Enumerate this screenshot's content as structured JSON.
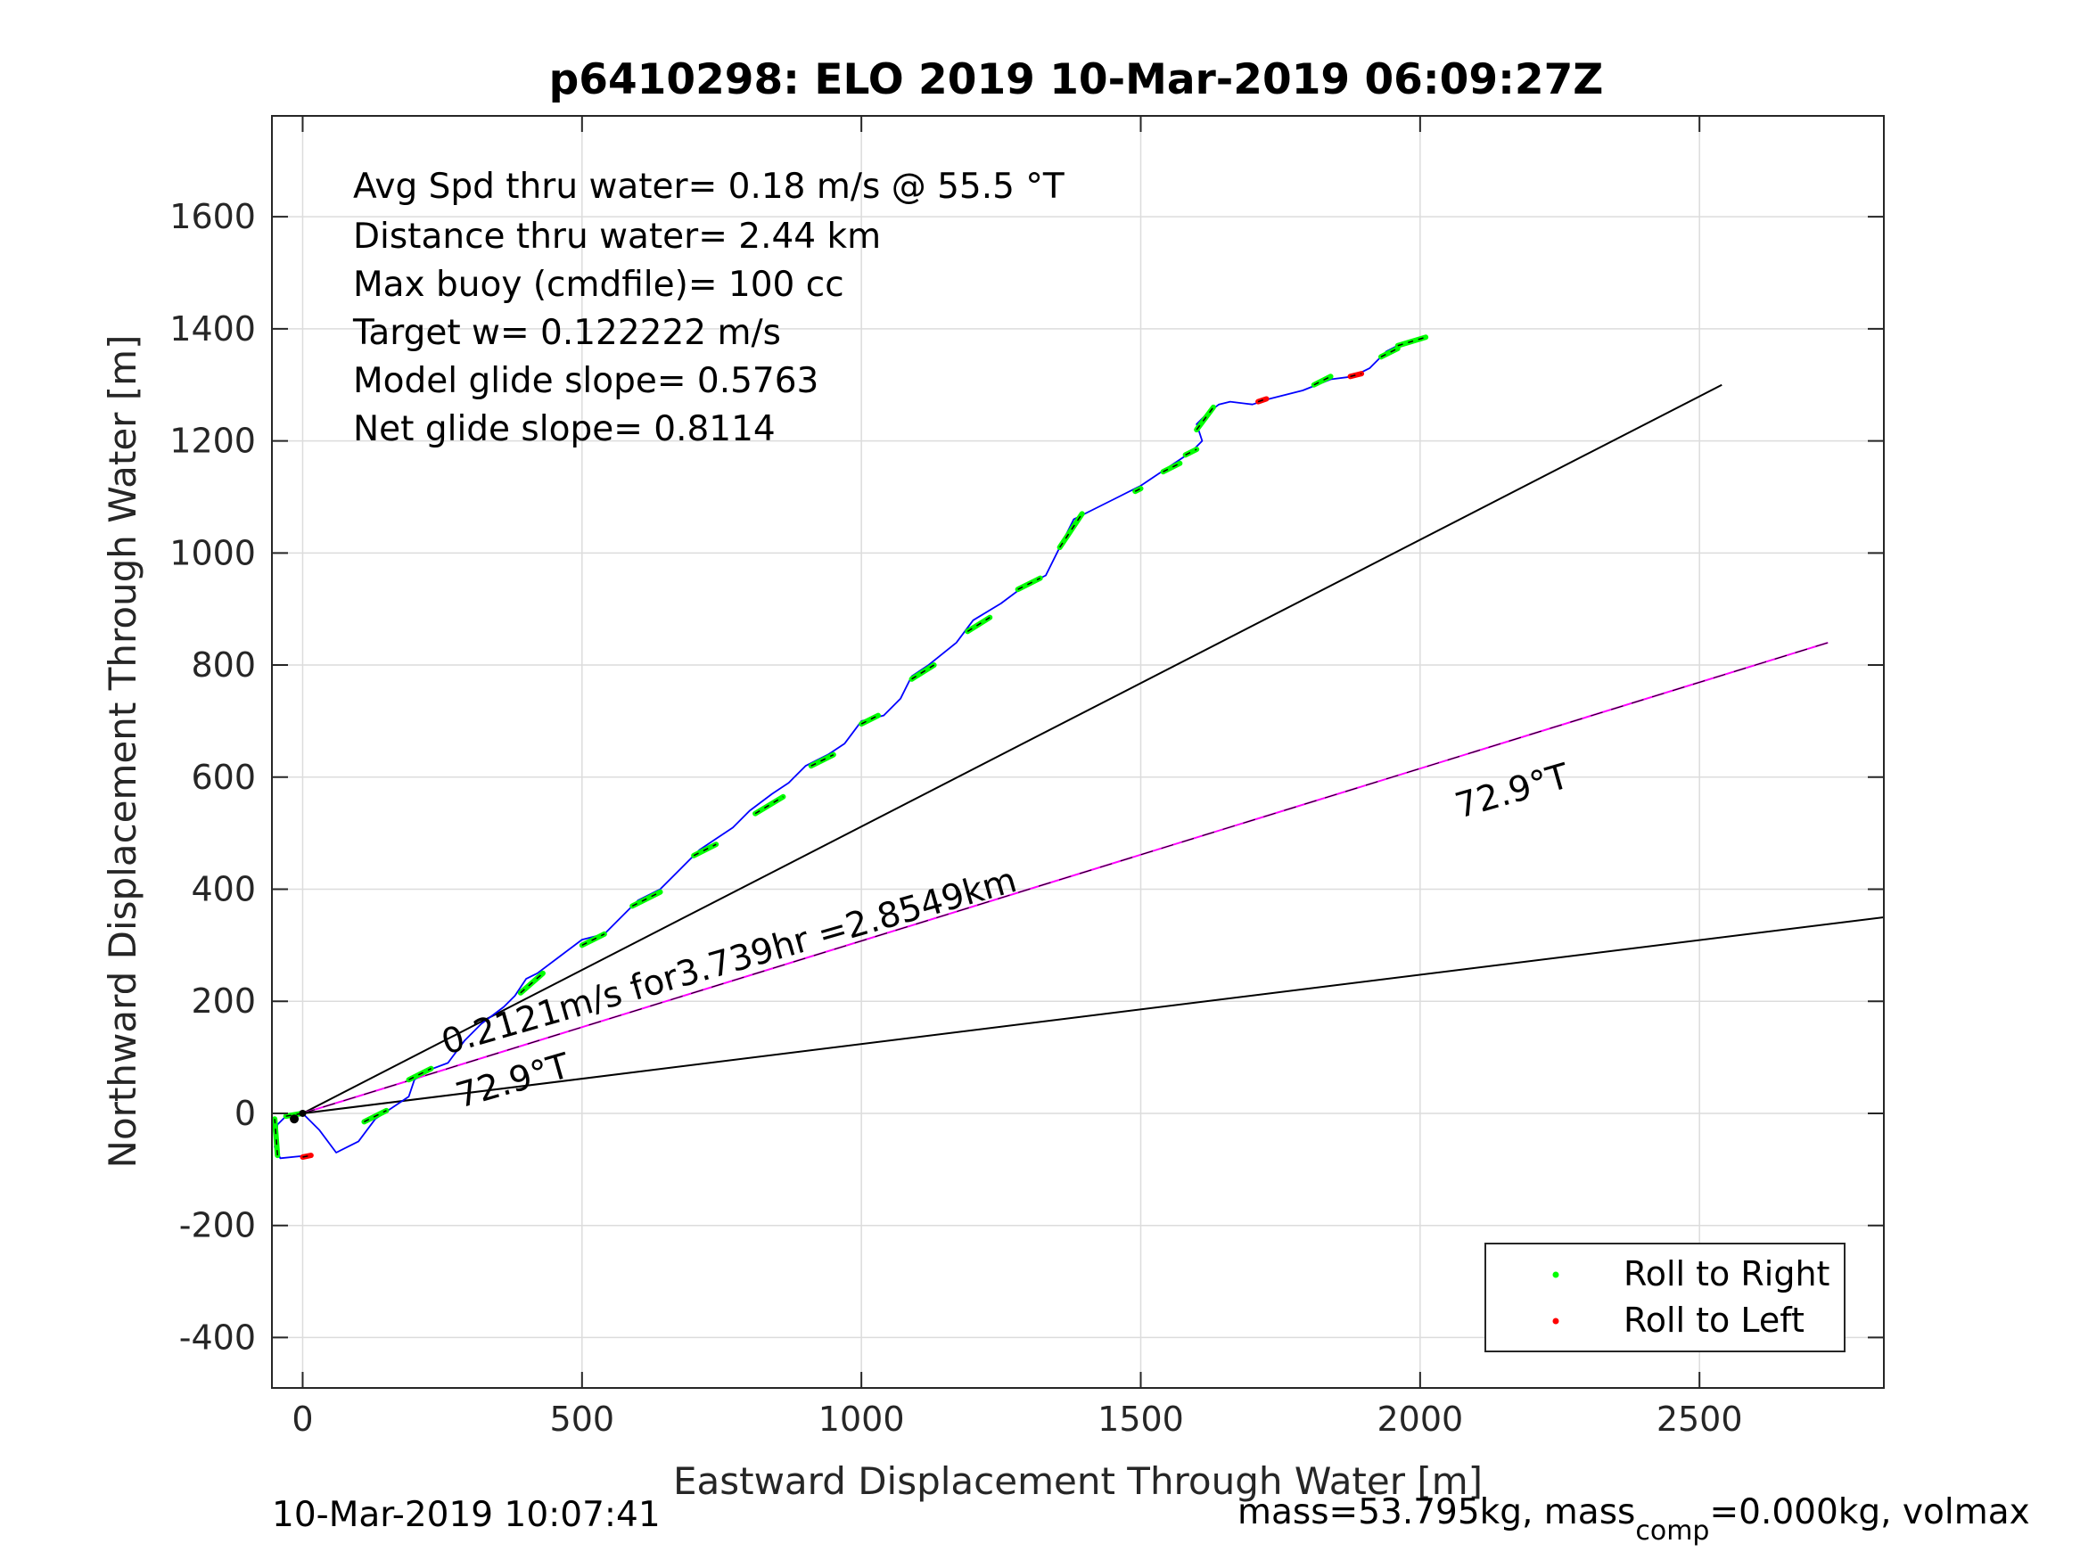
{
  "chart_data": {
    "type": "line",
    "title": "p6410298: ELO 2019 10-Mar-2019 06:09:27Z",
    "xlabel": "Eastward Displacement Through Water [m]",
    "ylabel": "Northward Displacement Through Water [m]",
    "xlim": [
      -55,
      2830
    ],
    "ylim": [
      -490,
      1780
    ],
    "xticks": [
      "0",
      "500",
      "1000",
      "1500",
      "2000",
      "2500"
    ],
    "yticks": [
      "-400",
      "-200",
      "0",
      "200",
      "400",
      "600",
      "800",
      "1000",
      "1200",
      "1400",
      "1600"
    ],
    "xtick_values": [
      0,
      500,
      1000,
      1500,
      2000,
      2500
    ],
    "ytick_values": [
      -400,
      -200,
      0,
      200,
      400,
      600,
      800,
      1000,
      1200,
      1400,
      1600
    ],
    "grid": true,
    "info_lines": [
      "Avg Spd thru water=  0.18 m/s @  55.5 °T",
      "Distance thru water=  2.44 km",
      "Max buoy (cmdfile)= 100 cc",
      "Target w= 0.122222 m/s",
      "Model glide slope= 0.5763",
      "Net glide slope= 0.8114"
    ],
    "annotations": {
      "current": "0.2121m/s for3.739hr =2.8549km",
      "heading_upper": "72.9°T",
      "heading_lower": "72.9°T"
    },
    "track": {
      "color": "#0000ff",
      "x": [
        10,
        -40,
        -50,
        -45,
        -30,
        0,
        30,
        60,
        100,
        130,
        160,
        190,
        200,
        220,
        260,
        290,
        320,
        360,
        380,
        400,
        420,
        460,
        500,
        540,
        570,
        600,
        640,
        680,
        710,
        740,
        770,
        800,
        840,
        870,
        900,
        940,
        970,
        1000,
        1040,
        1070,
        1090,
        1120,
        1170,
        1200,
        1250,
        1290,
        1330,
        1350,
        1380,
        1420,
        1460,
        1500,
        1530,
        1560,
        1590,
        1610,
        1600,
        1620,
        1640,
        1660,
        1700,
        1730,
        1790,
        1840,
        1880,
        1910,
        1940,
        1970,
        2010
      ],
      "y": [
        -75,
        -80,
        -60,
        -20,
        -5,
        0,
        -30,
        -70,
        -50,
        -10,
        10,
        30,
        60,
        75,
        90,
        130,
        160,
        190,
        210,
        240,
        250,
        280,
        310,
        320,
        350,
        380,
        400,
        440,
        470,
        490,
        510,
        540,
        570,
        590,
        620,
        640,
        660,
        700,
        710,
        740,
        780,
        800,
        840,
        880,
        910,
        940,
        960,
        1000,
        1060,
        1080,
        1100,
        1120,
        1140,
        1160,
        1180,
        1200,
        1230,
        1250,
        1265,
        1270,
        1265,
        1275,
        1290,
        1310,
        1315,
        1330,
        1360,
        1375,
        1385
      ]
    },
    "roll_right": {
      "name": "Roll to Right",
      "color": "#00ff00",
      "segments": [
        [
          -45,
          -75,
          -50,
          -10
        ],
        [
          -30,
          -5,
          0,
          0
        ],
        [
          190,
          60,
          230,
          80
        ],
        [
          110,
          -15,
          150,
          5
        ],
        [
          390,
          215,
          430,
          250
        ],
        [
          500,
          300,
          540,
          320
        ],
        [
          590,
          370,
          640,
          395
        ],
        [
          700,
          460,
          740,
          480
        ],
        [
          810,
          535,
          860,
          565
        ],
        [
          910,
          620,
          950,
          640
        ],
        [
          1000,
          695,
          1030,
          710
        ],
        [
          1090,
          775,
          1130,
          800
        ],
        [
          1190,
          860,
          1230,
          885
        ],
        [
          1280,
          935,
          1320,
          955
        ],
        [
          1355,
          1010,
          1395,
          1070
        ],
        [
          1490,
          1110,
          1500,
          1115
        ],
        [
          1540,
          1145,
          1570,
          1160
        ],
        [
          1580,
          1175,
          1600,
          1185
        ],
        [
          1600,
          1220,
          1630,
          1260
        ],
        [
          1810,
          1300,
          1840,
          1315
        ],
        [
          1930,
          1350,
          1960,
          1365
        ],
        [
          1960,
          1370,
          2010,
          1385
        ]
      ]
    },
    "roll_left": {
      "name": "Roll to Left",
      "color": "#ff0000",
      "segments": [
        [
          0,
          -78,
          15,
          -75
        ],
        [
          1710,
          1270,
          1725,
          1275
        ],
        [
          1875,
          1315,
          1895,
          1320
        ]
      ]
    },
    "ref_lines": [
      {
        "color": "#000000",
        "x": [
          0,
          2540
        ],
        "y": [
          0,
          1300
        ]
      },
      {
        "color": "#ff00ff",
        "x": [
          0,
          2730
        ],
        "y": [
          0,
          840
        ]
      },
      {
        "color": "#000000",
        "x": [
          0,
          2830
        ],
        "y": [
          0,
          350
        ]
      }
    ],
    "legend": {
      "placement": "bottom-right",
      "entries": [
        "Roll to Right",
        "Roll to Left"
      ],
      "colors": [
        "#00ff00",
        "#ff0000"
      ]
    }
  },
  "footer": {
    "timestamp": "10-Mar-2019 10:07:41",
    "mass_prefix": "mass=53.795kg, mass",
    "mass_sub": "comp",
    "mass_suffix": "=0.000kg, volmax"
  }
}
